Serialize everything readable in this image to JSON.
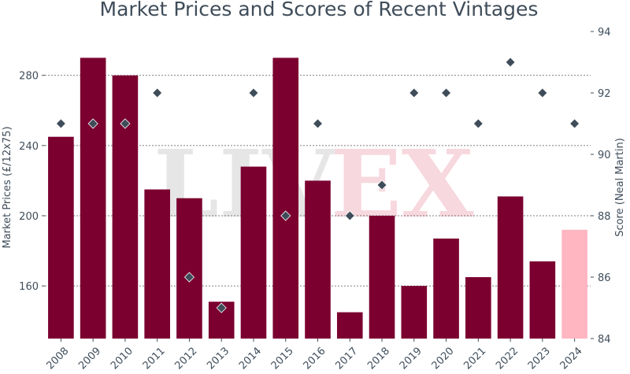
{
  "chart_data": {
    "type": "bar",
    "title": "Market Prices and Scores of Recent Vintages",
    "xlabel": "",
    "ylabel": "Market Prices (£/12x75)",
    "y2label": "Score (Neal Martin)",
    "categories": [
      "2008",
      "2009",
      "2010",
      "2011",
      "2012",
      "2013",
      "2014",
      "2015",
      "2016",
      "2017",
      "2018",
      "2019",
      "2020",
      "2021",
      "2022",
      "2023",
      "2024"
    ],
    "series": [
      {
        "kind": "bar",
        "axis": "left",
        "values": [
          245,
          290,
          280,
          215,
          210,
          151,
          228,
          290,
          220,
          145,
          200,
          160,
          187,
          165,
          211,
          174,
          192
        ]
      },
      {
        "kind": "scatter",
        "axis": "right",
        "values": [
          91,
          91,
          91,
          92,
          86,
          85,
          92,
          88,
          91,
          88,
          89,
          92,
          92,
          91,
          93,
          92,
          91
        ]
      }
    ],
    "ylim": [
      130,
      305
    ],
    "y2lim": [
      84,
      94
    ],
    "yticks": [
      160,
      200,
      240,
      280
    ],
    "y2ticks": [
      84,
      86,
      88,
      90,
      92,
      94
    ],
    "grid": "horizontal dashed at left-axis ticks",
    "colors": {
      "bar": "#7b0030",
      "highlight_bar": "#ffb6c1",
      "marker": "#3f4d5a",
      "text": "#3f4d5a"
    },
    "highlight_category": "2024",
    "watermark": "LIVEX"
  }
}
